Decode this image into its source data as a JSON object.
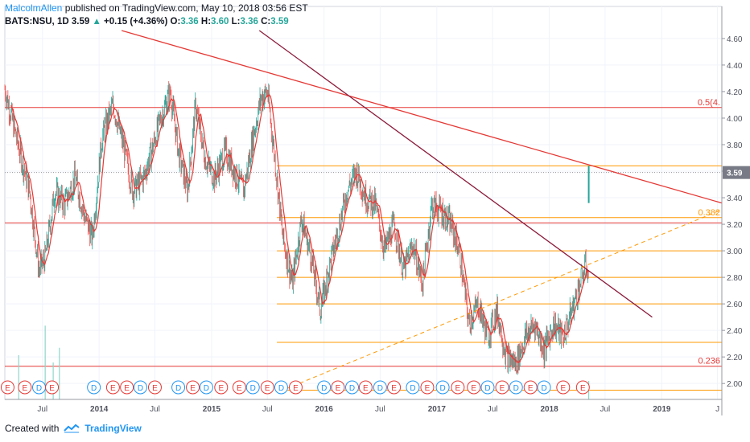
{
  "header": {
    "author": "MalcolmAllen",
    "published": "published on TradingView.com, May 10, 2018 03:56 EST"
  },
  "symbol_line": {
    "symbol": "BATS:NSU, 1D",
    "last": "3.59",
    "change": "+0.15 (+4.36%)",
    "o_label": "O:",
    "o_value": "3.36",
    "h_label": "H:",
    "h_value": "3.60",
    "l_label": "L:",
    "l_value": "3.36",
    "c_label": "C:",
    "c_value": "3.59"
  },
  "footer": {
    "created_with": "Created with",
    "brand": "TradingView"
  },
  "colors": {
    "price_up": "#26a69a",
    "price_down": "#ef5350",
    "ma_line": "#e53935",
    "fib_orange": "#ff9800",
    "red_level": "#e53935",
    "dark_trend": "#8b1a3a",
    "event_e": "#e53935",
    "event_d": "#2196f3",
    "last_badge": "#787b86"
  },
  "chart_data": {
    "type": "candlestick",
    "symbol": "BATS:NSU",
    "interval": "1D",
    "x_ticks": [
      "Jul",
      "2014",
      "Jul",
      "2015",
      "Jul",
      "2016",
      "Jul",
      "2017",
      "Jul",
      "2018",
      "Jul",
      "2019",
      "J"
    ],
    "x_tick_dates": [
      "2013-07-01",
      "2014-01-01",
      "2014-07-01",
      "2015-01-01",
      "2015-07-01",
      "2016-01-01",
      "2016-07-01",
      "2017-01-01",
      "2017-07-01",
      "2018-01-01",
      "2018-07-01",
      "2019-01-01",
      "2019-07-01"
    ],
    "y_ticks": [
      "4.60",
      "4.40",
      "4.20",
      "4.00",
      "3.80",
      "3.60",
      "3.40",
      "3.20",
      "3.00",
      "2.80",
      "2.60",
      "2.40",
      "2.20",
      "2.00"
    ],
    "ylim": [
      1.88,
      4.66
    ],
    "xlim": [
      "2013-03-01",
      "2019-07-15"
    ],
    "last_price": "3.59",
    "price_path": [
      [
        "2013-03-01",
        4.22
      ],
      [
        "2013-04-15",
        3.78
      ],
      [
        "2013-05-20",
        3.45
      ],
      [
        "2013-06-20",
        2.85
      ],
      [
        "2013-07-10",
        2.95
      ],
      [
        "2013-08-10",
        3.45
      ],
      [
        "2013-09-10",
        3.35
      ],
      [
        "2013-10-15",
        3.55
      ],
      [
        "2013-11-15",
        3.25
      ],
      [
        "2013-12-10",
        3.1
      ],
      [
        "2014-01-10",
        3.85
      ],
      [
        "2014-02-15",
        4.1
      ],
      [
        "2014-03-20",
        3.8
      ],
      [
        "2014-04-20",
        3.45
      ],
      [
        "2014-05-25",
        3.55
      ],
      [
        "2014-06-20",
        3.75
      ],
      [
        "2014-07-20",
        4.0
      ],
      [
        "2014-08-20",
        4.2
      ],
      [
        "2014-09-15",
        3.75
      ],
      [
        "2014-10-15",
        3.45
      ],
      [
        "2014-11-10",
        4.1
      ],
      [
        "2014-12-10",
        3.7
      ],
      [
        "2015-01-10",
        3.55
      ],
      [
        "2015-02-15",
        3.75
      ],
      [
        "2015-03-15",
        3.6
      ],
      [
        "2015-04-15",
        3.45
      ],
      [
        "2015-05-15",
        3.85
      ],
      [
        "2015-06-10",
        4.15
      ],
      [
        "2015-07-01",
        4.2
      ],
      [
        "2015-07-25",
        3.7
      ],
      [
        "2015-08-20",
        3.1
      ],
      [
        "2015-09-20",
        2.75
      ],
      [
        "2015-10-20",
        3.25
      ],
      [
        "2015-11-20",
        2.95
      ],
      [
        "2015-12-20",
        2.55
      ],
      [
        "2016-01-15",
        2.85
      ],
      [
        "2016-02-15",
        3.15
      ],
      [
        "2016-03-15",
        3.45
      ],
      [
        "2016-04-15",
        3.6
      ],
      [
        "2016-05-15",
        3.4
      ],
      [
        "2016-06-15",
        3.35
      ],
      [
        "2016-07-15",
        3.0
      ],
      [
        "2016-08-15",
        3.2
      ],
      [
        "2016-09-15",
        2.85
      ],
      [
        "2016-10-15",
        3.05
      ],
      [
        "2016-11-15",
        2.75
      ],
      [
        "2016-12-15",
        3.35
      ],
      [
        "2017-01-15",
        3.3
      ],
      [
        "2017-02-15",
        3.2
      ],
      [
        "2017-03-15",
        3.0
      ],
      [
        "2017-04-15",
        2.45
      ],
      [
        "2017-05-15",
        2.6
      ],
      [
        "2017-06-15",
        2.35
      ],
      [
        "2017-07-15",
        2.55
      ],
      [
        "2017-08-15",
        2.2
      ],
      [
        "2017-09-15",
        2.15
      ],
      [
        "2017-10-15",
        2.35
      ],
      [
        "2017-11-15",
        2.45
      ],
      [
        "2017-12-15",
        2.25
      ],
      [
        "2018-01-15",
        2.45
      ],
      [
        "2018-02-15",
        2.35
      ],
      [
        "2018-03-15",
        2.55
      ],
      [
        "2018-04-10",
        2.75
      ],
      [
        "2018-05-01",
        2.9
      ],
      [
        "2018-05-08",
        2.8
      ],
      [
        "2018-05-09",
        3.44
      ],
      [
        "2018-05-10",
        3.59
      ]
    ],
    "horizontal_levels": [
      {
        "price": 4.08,
        "color": "red",
        "label": "0.5(4.",
        "from": "2013-03-01"
      },
      {
        "price": 3.21,
        "color": "red",
        "label": "",
        "from": "2013-03-01"
      },
      {
        "price": 2.13,
        "color": "red",
        "label": "0.236",
        "from": "2013-03-01"
      },
      {
        "price": 3.64,
        "color": "orange",
        "label": "",
        "from": "2015-08-01"
      },
      {
        "price": 3.25,
        "color": "orange",
        "label": "0.382",
        "from": "2015-08-01"
      },
      {
        "price": 3.0,
        "color": "orange",
        "label": "",
        "from": "2015-08-01"
      },
      {
        "price": 2.8,
        "color": "orange",
        "label": "",
        "from": "2015-08-01"
      },
      {
        "price": 2.6,
        "color": "orange",
        "label": "",
        "from": "2015-08-01"
      },
      {
        "price": 2.31,
        "color": "orange",
        "label": "",
        "from": "2015-08-01"
      },
      {
        "price": 1.95,
        "color": "orange",
        "label": "",
        "from": "2015-08-01"
      }
    ],
    "trend_lines": [
      {
        "color": "red",
        "style": "solid",
        "from": [
          "2014-03-15",
          4.66
        ],
        "to": [
          "2019-07-15",
          3.36
        ]
      },
      {
        "color": "dark",
        "style": "solid",
        "from": [
          "2015-06-05",
          4.66
        ],
        "to": [
          "2018-12-01",
          2.5
        ]
      },
      {
        "color": "orange",
        "style": "dashed",
        "from": [
          "2015-08-10",
          1.94
        ],
        "to": [
          "2019-07-15",
          3.31
        ]
      }
    ],
    "volume_spikes": [
      [
        "2013-04-15",
        0.12
      ],
      [
        "2013-07-10",
        0.2
      ],
      [
        "2013-08-05",
        0.1
      ],
      [
        "2013-08-25",
        0.14
      ],
      [
        "2018-05-09",
        0.05
      ]
    ],
    "events": [
      {
        "type": "E",
        "date": "2013-03-10"
      },
      {
        "type": "E",
        "date": "2013-05-05"
      },
      {
        "type": "D",
        "date": "2013-06-20"
      },
      {
        "type": "E",
        "date": "2013-08-01"
      },
      {
        "type": "D",
        "date": "2013-12-15"
      },
      {
        "type": "E",
        "date": "2014-02-15"
      },
      {
        "type": "E",
        "date": "2014-04-01"
      },
      {
        "type": "D",
        "date": "2014-05-15"
      },
      {
        "type": "E",
        "date": "2014-07-01"
      },
      {
        "type": "D",
        "date": "2014-09-15"
      },
      {
        "type": "E",
        "date": "2014-11-01"
      },
      {
        "type": "D",
        "date": "2014-12-15"
      },
      {
        "type": "E",
        "date": "2015-02-01"
      },
      {
        "type": "E",
        "date": "2015-04-01"
      },
      {
        "type": "D",
        "date": "2015-05-15"
      },
      {
        "type": "E",
        "date": "2015-07-01"
      },
      {
        "type": "D",
        "date": "2015-08-15"
      },
      {
        "type": "E",
        "date": "2015-10-01"
      },
      {
        "type": "D",
        "date": "2016-01-01"
      },
      {
        "type": "E",
        "date": "2016-02-15"
      },
      {
        "type": "D",
        "date": "2016-04-01"
      },
      {
        "type": "E",
        "date": "2016-05-15"
      },
      {
        "type": "D",
        "date": "2016-07-01"
      },
      {
        "type": "E",
        "date": "2016-08-15"
      },
      {
        "type": "D",
        "date": "2016-10-15"
      },
      {
        "type": "E",
        "date": "2016-12-01"
      },
      {
        "type": "D",
        "date": "2017-01-20"
      },
      {
        "type": "E",
        "date": "2017-03-10"
      },
      {
        "type": "E",
        "date": "2017-05-01"
      },
      {
        "type": "D",
        "date": "2017-06-15"
      },
      {
        "type": "E",
        "date": "2017-08-01"
      },
      {
        "type": "D",
        "date": "2017-09-15"
      },
      {
        "type": "E",
        "date": "2017-11-01"
      },
      {
        "type": "D",
        "date": "2017-12-15"
      },
      {
        "type": "E",
        "date": "2018-02-15"
      },
      {
        "type": "E",
        "date": "2018-04-20"
      }
    ]
  }
}
